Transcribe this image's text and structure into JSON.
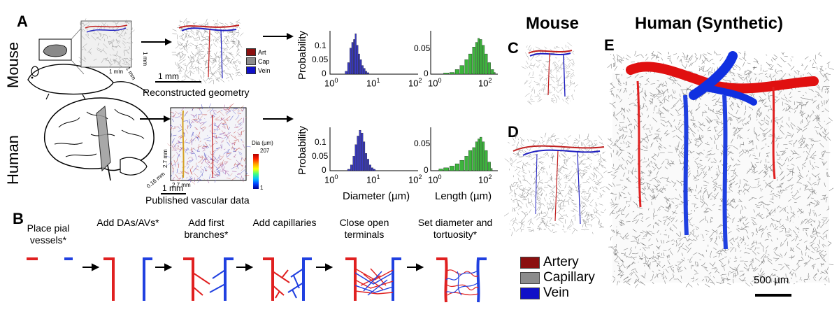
{
  "panels": {
    "a": "A",
    "b": "B",
    "c": "C",
    "d": "D",
    "e": "E"
  },
  "row_labels": {
    "mouse": "Mouse",
    "human": "Human"
  },
  "headings": {
    "mouse": "Mouse",
    "human": "Human (Synthetic)"
  },
  "captions": {
    "reconstructed": "Reconstructed geometry",
    "published": "Published vascular data"
  },
  "scale_bars": {
    "mouse_1mm": "1 mm",
    "human_1mm": "1 mm",
    "mouse_box_x": "1 mm",
    "mouse_box_y": "1 mm",
    "mouse_box_z": "1 mm",
    "human_box_y": "2.7 mm",
    "human_box_x": "2.7 mm",
    "human_box_z": "0.16 mm",
    "synthetic": "500 µm"
  },
  "small_legend": {
    "art": "Art",
    "cap": "Cap",
    "vein": "Vein"
  },
  "colorbar": {
    "title": "Dia (µm)",
    "max": "207",
    "min": "1"
  },
  "histograms": {
    "ylabel": "Probability",
    "xlabel_diameter": "Diameter (µm)",
    "xlabel_length": "Length (µm)",
    "x_ticks": [
      "10",
      "10",
      "10"
    ],
    "x_exp": [
      "0",
      "1",
      "2"
    ],
    "y_ticks_diameter": [
      "0.1",
      "0.05",
      "0"
    ],
    "y_ticks_length": [
      "0.05",
      "0"
    ]
  },
  "chart_data": [
    {
      "type": "bar",
      "name": "mouse-diameter",
      "scale": "log",
      "xlim": [
        1,
        100
      ],
      "ylim": [
        0,
        0.15
      ],
      "x": [
        2.2,
        2.5,
        2.8,
        3.1,
        3.4,
        3.7,
        4.0,
        4.4,
        4.8,
        5.3,
        5.8,
        6.4,
        7.0
      ],
      "y": [
        0.01,
        0.04,
        0.09,
        0.11,
        0.12,
        0.14,
        0.1,
        0.07,
        0.05,
        0.03,
        0.02,
        0.01,
        0.005
      ],
      "color": "#3a3ac0"
    },
    {
      "type": "bar",
      "name": "mouse-length",
      "scale": "log",
      "xlim": [
        1,
        300
      ],
      "ylim": [
        0,
        0.075
      ],
      "x": [
        3,
        5,
        8,
        12,
        18,
        25,
        35,
        45,
        55,
        65,
        80,
        100,
        130,
        170,
        220
      ],
      "y": [
        0.002,
        0.003,
        0.008,
        0.015,
        0.025,
        0.035,
        0.047,
        0.055,
        0.062,
        0.06,
        0.05,
        0.035,
        0.02,
        0.008,
        0.003
      ],
      "color": "#3cb43c"
    },
    {
      "type": "bar",
      "name": "human-diameter",
      "scale": "log",
      "xlim": [
        1,
        100
      ],
      "ylim": [
        0,
        0.15
      ],
      "x": [
        2.5,
        2.9,
        3.3,
        3.7,
        4.1,
        4.6,
        5.1,
        5.7,
        6.3,
        7.0,
        7.8,
        8.7,
        9.7
      ],
      "y": [
        0.005,
        0.02,
        0.05,
        0.09,
        0.12,
        0.14,
        0.13,
        0.1,
        0.06,
        0.04,
        0.02,
        0.01,
        0.005
      ],
      "color": "#3a3ac0"
    },
    {
      "type": "bar",
      "name": "human-length",
      "scale": "log",
      "xlim": [
        1,
        300
      ],
      "ylim": [
        0,
        0.075
      ],
      "x": [
        2,
        3,
        5,
        8,
        12,
        18,
        25,
        35,
        45,
        55,
        65,
        80,
        100,
        130,
        170
      ],
      "y": [
        0.003,
        0.005,
        0.008,
        0.012,
        0.018,
        0.025,
        0.035,
        0.04,
        0.05,
        0.055,
        0.058,
        0.05,
        0.035,
        0.015,
        0.004
      ],
      "color": "#3cb43c"
    }
  ],
  "steps": [
    {
      "label": "Place pial vessels*"
    },
    {
      "label": "Add DAs/AVs*"
    },
    {
      "label": "Add first branches*"
    },
    {
      "label": "Add capillaries"
    },
    {
      "label": "Close open terminals"
    },
    {
      "label": "Set diameter and tortuosity*"
    }
  ],
  "legend": [
    {
      "label": "Artery",
      "color": "#8b1010"
    },
    {
      "label": "Capillary",
      "color": "#8c8c8c"
    },
    {
      "label": "Vein",
      "color": "#1010c8"
    }
  ]
}
